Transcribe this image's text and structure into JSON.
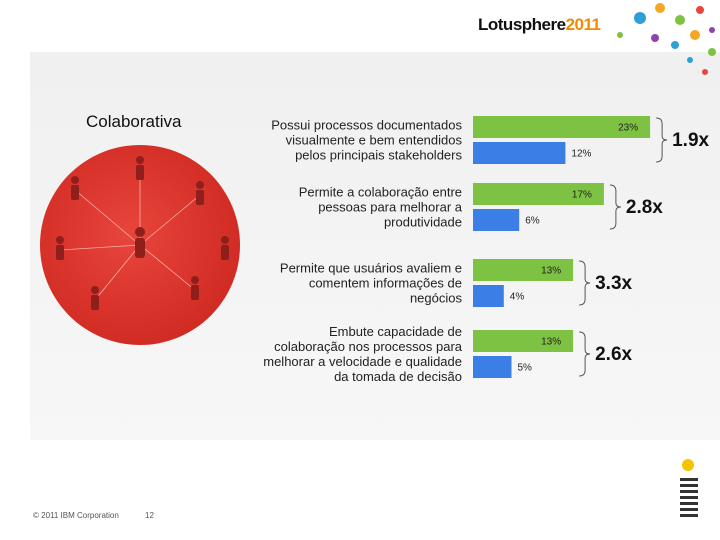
{
  "header": {
    "logo_name": "Lotusphere",
    "logo_year": "2011"
  },
  "slide": {
    "heading": "Colaborativa"
  },
  "footer": {
    "copyright": "© 2011 IBM Corporation",
    "page": "12"
  },
  "chart_data": {
    "type": "bar",
    "categories": [
      "Possui processos documentados\nvisualmente e bem entendidos\npelos principais stakeholders",
      "Permite a colaboração entre\npessoas para melhorar a\nprodutividade",
      "Permite que usuários avaliem e\ncomentem informações de\nnegócios",
      "Embute capacidade de\ncolaboração nos processos para\nmelhorar a velocidade e qualidade\nda tomada de decisão"
    ],
    "series": [
      {
        "color": "#7dc242",
        "values": [
          23,
          17,
          13,
          13
        ],
        "value_labels": [
          "23%",
          "17%",
          "13%",
          "13%"
        ]
      },
      {
        "color": "#3b7fe6",
        "values": [
          12,
          6,
          4,
          5
        ],
        "value_labels": [
          "12%",
          "6%",
          "4%",
          "5%"
        ]
      }
    ],
    "annotations": [
      "1.9x",
      "2.8x",
      "3.3x",
      "2.6x"
    ]
  }
}
